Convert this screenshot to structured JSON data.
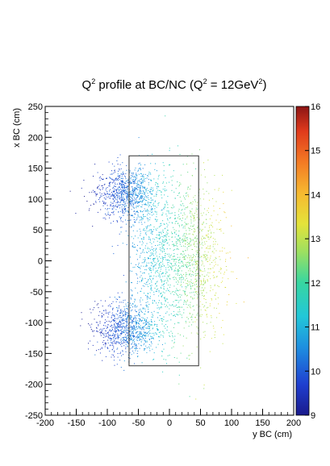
{
  "chart_data": {
    "type": "scatter",
    "title": {
      "q": "Q",
      "sup1": "2",
      "mid": " profile at BC/NC (Q",
      "sup2": "2",
      "mid2": " = 12GeV",
      "sup3": "2",
      "end": ")"
    },
    "xlabel": "y BC (cm)",
    "ylabel": "x BC (cm)",
    "xlim": [
      -200,
      200
    ],
    "ylim": [
      -250,
      250
    ],
    "x_ticks": [
      -200,
      -150,
      -100,
      -50,
      0,
      50,
      100,
      150,
      200
    ],
    "y_ticks": [
      -250,
      -200,
      -150,
      -100,
      -50,
      0,
      50,
      100,
      150,
      200,
      250
    ],
    "color_scale": {
      "min": 9,
      "max": 16,
      "ticks": [
        9,
        10,
        11,
        12,
        13,
        14,
        15,
        16
      ],
      "palette": "rainbow"
    },
    "overlay_rect": {
      "x_min": -65,
      "x_max": 47,
      "y_min": -170,
      "y_max": 170
    },
    "clusters": [
      {
        "x_center": -70,
        "y_center": 110,
        "x_spread": 40,
        "y_spread": 35,
        "color_value": 10.2
      },
      {
        "x_center": -70,
        "y_center": -110,
        "x_spread": 40,
        "y_spread": 35,
        "color_value": 10.2
      },
      {
        "x_center": -20,
        "y_center": 0,
        "x_spread": 40,
        "y_spread": 110,
        "color_value": 11.3
      },
      {
        "x_center": 40,
        "y_center": 0,
        "x_spread": 40,
        "y_spread": 110,
        "color_value": 12.6
      }
    ]
  },
  "colors": {
    "frame": "#000000",
    "overlay_rect": "#333333"
  }
}
